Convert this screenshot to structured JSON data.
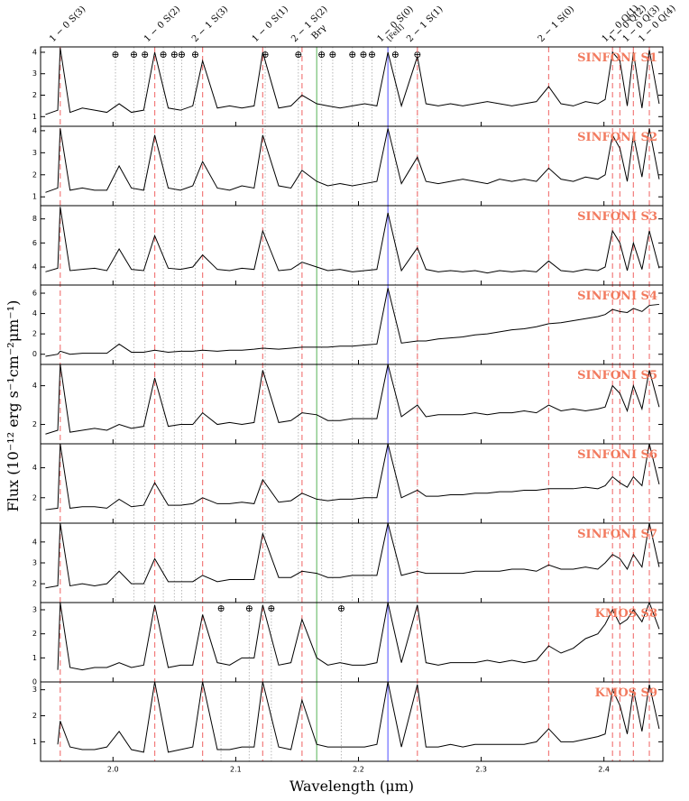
{
  "chart_data": {
    "type": "line",
    "x_label": "Wavelength (μm)",
    "y_label": "Flux (10⁻¹² erg s⁻¹cm⁻²μm⁻¹)",
    "xlim": [
      1.941,
      2.448
    ],
    "xticks": [
      {
        "value": 2,
        "label": "2.0"
      },
      2.1,
      2.2,
      2.3,
      2.4
    ],
    "label_color": "#f27a5e",
    "x": [
      1.945,
      1.955,
      1.957,
      1.965,
      1.975,
      1.985,
      1.995,
      2.005,
      2.015,
      2.025,
      2.034,
      2.045,
      2.055,
      2.065,
      2.073,
      2.085,
      2.095,
      2.105,
      2.115,
      2.122,
      2.135,
      2.145,
      2.154,
      2.166,
      2.175,
      2.185,
      2.195,
      2.205,
      2.215,
      2.224,
      2.235,
      2.248,
      2.255,
      2.265,
      2.275,
      2.285,
      2.295,
      2.305,
      2.315,
      2.325,
      2.335,
      2.345,
      2.355,
      2.365,
      2.375,
      2.385,
      2.395,
      2.401,
      2.407,
      2.413,
      2.419,
      2.424,
      2.431,
      2.437,
      2.445
    ],
    "series": [
      {
        "name": "SINFONI S1",
        "color": "#000000",
        "ylim": [
          0.55,
          4.25
        ],
        "yticks": [
          1,
          2,
          3,
          4
        ],
        "values": [
          1.1,
          1.3,
          4.2,
          1.2,
          1.4,
          1.3,
          1.2,
          1.6,
          1.2,
          1.3,
          4.0,
          1.4,
          1.3,
          1.5,
          3.6,
          1.4,
          1.5,
          1.4,
          1.5,
          4.0,
          1.4,
          1.5,
          2.0,
          1.6,
          1.5,
          1.4,
          1.5,
          1.6,
          1.5,
          4.0,
          1.5,
          3.8,
          1.6,
          1.5,
          1.6,
          1.5,
          1.6,
          1.7,
          1.6,
          1.5,
          1.6,
          1.7,
          2.4,
          1.6,
          1.5,
          1.7,
          1.6,
          1.8,
          4.0,
          3.6,
          1.5,
          4.0,
          1.4,
          4.1,
          1.6
        ]
      },
      {
        "name": "SINFONI S2",
        "color": "#000000",
        "ylim": [
          0.6,
          4.2
        ],
        "yticks": [
          1,
          2,
          3,
          4
        ],
        "values": [
          1.2,
          1.4,
          4.1,
          1.3,
          1.4,
          1.3,
          1.3,
          2.4,
          1.4,
          1.3,
          3.8,
          1.4,
          1.3,
          1.5,
          2.6,
          1.4,
          1.3,
          1.5,
          1.4,
          3.8,
          1.5,
          1.4,
          2.2,
          1.7,
          1.5,
          1.6,
          1.5,
          1.6,
          1.7,
          4.1,
          1.6,
          2.8,
          1.7,
          1.6,
          1.7,
          1.8,
          1.7,
          1.6,
          1.8,
          1.7,
          1.8,
          1.7,
          2.3,
          1.8,
          1.7,
          1.9,
          1.8,
          2.0,
          3.8,
          3.2,
          1.7,
          3.8,
          1.9,
          4.1,
          1.8
        ]
      },
      {
        "name": "SINFONI S3",
        "color": "#000000",
        "ylim": [
          2.5,
          9.1
        ],
        "yticks": [
          4,
          6,
          8
        ],
        "values": [
          3.6,
          3.9,
          9.0,
          3.7,
          3.8,
          3.9,
          3.7,
          5.5,
          3.8,
          3.7,
          6.6,
          3.9,
          3.8,
          4.0,
          5.0,
          3.8,
          3.7,
          3.9,
          3.8,
          7.0,
          3.7,
          3.8,
          4.4,
          4.0,
          3.7,
          3.8,
          3.6,
          3.7,
          3.8,
          8.5,
          3.7,
          5.6,
          3.8,
          3.6,
          3.7,
          3.6,
          3.7,
          3.5,
          3.7,
          3.6,
          3.7,
          3.6,
          4.5,
          3.7,
          3.6,
          3.8,
          3.7,
          4.0,
          7.0,
          6.0,
          3.7,
          6.0,
          3.8,
          7.0,
          3.9
        ]
      },
      {
        "name": "SINFONI S4",
        "color": "#000000",
        "ylim": [
          -1,
          6.8
        ],
        "yticks": [
          0,
          2,
          4,
          6
        ],
        "values": [
          -0.2,
          0.0,
          0.3,
          0.0,
          0.1,
          0.1,
          0.1,
          1.0,
          0.2,
          0.2,
          0.4,
          0.2,
          0.3,
          0.3,
          0.4,
          0.3,
          0.4,
          0.4,
          0.5,
          0.6,
          0.5,
          0.6,
          0.7,
          0.7,
          0.7,
          0.8,
          0.8,
          0.9,
          1.0,
          6.5,
          1.1,
          1.3,
          1.3,
          1.5,
          1.6,
          1.7,
          1.9,
          2.0,
          2.2,
          2.4,
          2.5,
          2.7,
          3.0,
          3.1,
          3.3,
          3.5,
          3.7,
          3.9,
          4.4,
          4.2,
          4.1,
          4.5,
          4.2,
          4.8,
          4.9
        ]
      },
      {
        "name": "SINFONI S5",
        "color": "#000000",
        "ylim": [
          1,
          5.1
        ],
        "yticks": [
          2,
          4
        ],
        "values": [
          1.5,
          1.7,
          5.1,
          1.6,
          1.7,
          1.8,
          1.7,
          2.0,
          1.8,
          1.9,
          4.4,
          1.9,
          2.0,
          2.0,
          2.6,
          2.0,
          2.1,
          2.0,
          2.1,
          4.8,
          2.1,
          2.2,
          2.6,
          2.5,
          2.2,
          2.2,
          2.3,
          2.3,
          2.3,
          5.1,
          2.4,
          3.0,
          2.4,
          2.5,
          2.5,
          2.5,
          2.6,
          2.5,
          2.6,
          2.6,
          2.7,
          2.6,
          3.0,
          2.7,
          2.8,
          2.7,
          2.8,
          2.9,
          4.0,
          3.6,
          2.7,
          4.0,
          2.8,
          4.8,
          2.9
        ]
      },
      {
        "name": "SINFONI S6",
        "color": "#000000",
        "ylim": [
          0.3,
          5.6
        ],
        "yticks": [
          2,
          4
        ],
        "values": [
          1.2,
          1.3,
          5.6,
          1.3,
          1.4,
          1.4,
          1.3,
          1.9,
          1.4,
          1.5,
          3.0,
          1.5,
          1.5,
          1.6,
          2.0,
          1.6,
          1.6,
          1.7,
          1.6,
          3.2,
          1.7,
          1.8,
          2.3,
          1.9,
          1.8,
          1.9,
          1.9,
          2.0,
          2.0,
          5.6,
          2.0,
          2.5,
          2.1,
          2.1,
          2.2,
          2.2,
          2.3,
          2.3,
          2.4,
          2.4,
          2.5,
          2.5,
          2.6,
          2.6,
          2.6,
          2.7,
          2.6,
          2.8,
          3.4,
          3.0,
          2.7,
          3.4,
          2.8,
          5.6,
          2.9
        ]
      },
      {
        "name": "SINFONI S7",
        "color": "#000000",
        "ylim": [
          1.1,
          4.9
        ],
        "yticks": [
          2,
          3,
          4
        ],
        "values": [
          1.8,
          1.9,
          4.9,
          1.9,
          2.0,
          1.9,
          2.0,
          2.6,
          2.0,
          2.0,
          3.2,
          2.1,
          2.1,
          2.1,
          2.4,
          2.1,
          2.2,
          2.2,
          2.2,
          4.4,
          2.3,
          2.3,
          2.6,
          2.5,
          2.3,
          2.3,
          2.4,
          2.4,
          2.4,
          4.9,
          2.4,
          2.6,
          2.5,
          2.5,
          2.5,
          2.5,
          2.6,
          2.6,
          2.6,
          2.7,
          2.7,
          2.6,
          2.9,
          2.7,
          2.7,
          2.8,
          2.7,
          3.0,
          3.4,
          3.2,
          2.7,
          3.4,
          2.8,
          4.9,
          2.8
        ]
      },
      {
        "name": "KMOS S8",
        "color": "#000000",
        "ylim": [
          0,
          3.3
        ],
        "yticks": [
          0,
          1,
          2,
          3
        ],
        "values": [
          null,
          0.5,
          3.3,
          0.6,
          0.5,
          0.6,
          0.6,
          0.8,
          0.6,
          0.7,
          3.2,
          0.6,
          0.7,
          0.7,
          2.8,
          0.8,
          0.7,
          1.0,
          1.0,
          3.2,
          0.7,
          0.8,
          2.6,
          1.0,
          0.7,
          0.8,
          0.7,
          0.7,
          0.8,
          3.3,
          0.8,
          3.2,
          0.8,
          0.7,
          0.8,
          0.8,
          0.8,
          0.9,
          0.8,
          0.9,
          0.8,
          0.9,
          1.5,
          1.2,
          1.4,
          1.8,
          2.0,
          2.4,
          3.0,
          2.4,
          2.6,
          3.0,
          2.5,
          3.3,
          2.2
        ]
      },
      {
        "name": "KMOS S9",
        "color": "#000000",
        "ylim": [
          0.25,
          3.3
        ],
        "yticks": [
          1,
          2,
          3
        ],
        "values": [
          null,
          0.9,
          1.8,
          0.8,
          0.7,
          0.7,
          0.8,
          1.4,
          0.7,
          0.6,
          3.3,
          0.6,
          0.7,
          0.8,
          3.3,
          0.7,
          0.7,
          0.8,
          0.8,
          3.3,
          0.8,
          0.7,
          2.6,
          0.9,
          0.8,
          0.8,
          0.8,
          0.8,
          0.9,
          3.3,
          0.8,
          3.2,
          0.8,
          0.8,
          0.9,
          0.8,
          0.9,
          0.9,
          0.9,
          0.9,
          0.9,
          1.0,
          1.5,
          1.0,
          1.0,
          1.1,
          1.2,
          1.3,
          3.0,
          2.4,
          1.3,
          3.0,
          1.4,
          3.2,
          1.5
        ]
      }
    ],
    "lines": [
      {
        "label": "1 − 0 S(3)",
        "x": 1.957,
        "color": "#f27b7b",
        "dash": true
      },
      {
        "label": "1 − 0 S(2)",
        "x": 2.034,
        "color": "#f27b7b",
        "dash": true
      },
      {
        "label": "2 − 1 S(3)",
        "x": 2.073,
        "color": "#f27b7b",
        "dash": true
      },
      {
        "label": "1 − 0 S(1)",
        "x": 2.122,
        "color": "#f27b7b",
        "dash": true
      },
      {
        "label": "2 − 1 S(2)",
        "x": 2.154,
        "color": "#f27b7b",
        "dash": true
      },
      {
        "label": "Brγ",
        "x": 2.166,
        "color": "#73bf73",
        "dash": false
      },
      {
        "label": "1 − 0 S(0)",
        "note": "[FeII]",
        "x": 2.224,
        "color": "#6b6bff",
        "dash": false
      },
      {
        "label": "2 − 1 S(1)",
        "x": 2.248,
        "color": "#f27b7b",
        "dash": true
      },
      {
        "label": "2 − 1 S(0)",
        "x": 2.355,
        "color": "#f27b7b",
        "dash": true
      },
      {
        "label": "1 − 0 Q(1)",
        "x": 2.407,
        "color": "#f27b7b",
        "dash": true
      },
      {
        "label": "1 − 0 Q(2)",
        "x": 2.413,
        "color": "#f27b7b",
        "dash": true
      },
      {
        "label": "1 − 0 Q(3)",
        "x": 2.424,
        "color": "#f27b7b",
        "dash": true
      },
      {
        "label": "1 − 0 Q(4)",
        "x": 2.437,
        "color": "#f27b7b",
        "dash": true
      }
    ],
    "telluric": {
      "symbol": "⊕",
      "color": "#b8b8b8",
      "sinfoni": [
        2.002,
        2.017,
        2.026,
        2.041,
        2.05,
        2.056,
        2.067,
        2.124,
        2.151,
        2.17,
        2.179,
        2.195,
        2.204,
        2.211,
        2.23,
        2.248
      ],
      "kmos": [
        2.088,
        2.111,
        2.129,
        2.186
      ]
    }
  }
}
